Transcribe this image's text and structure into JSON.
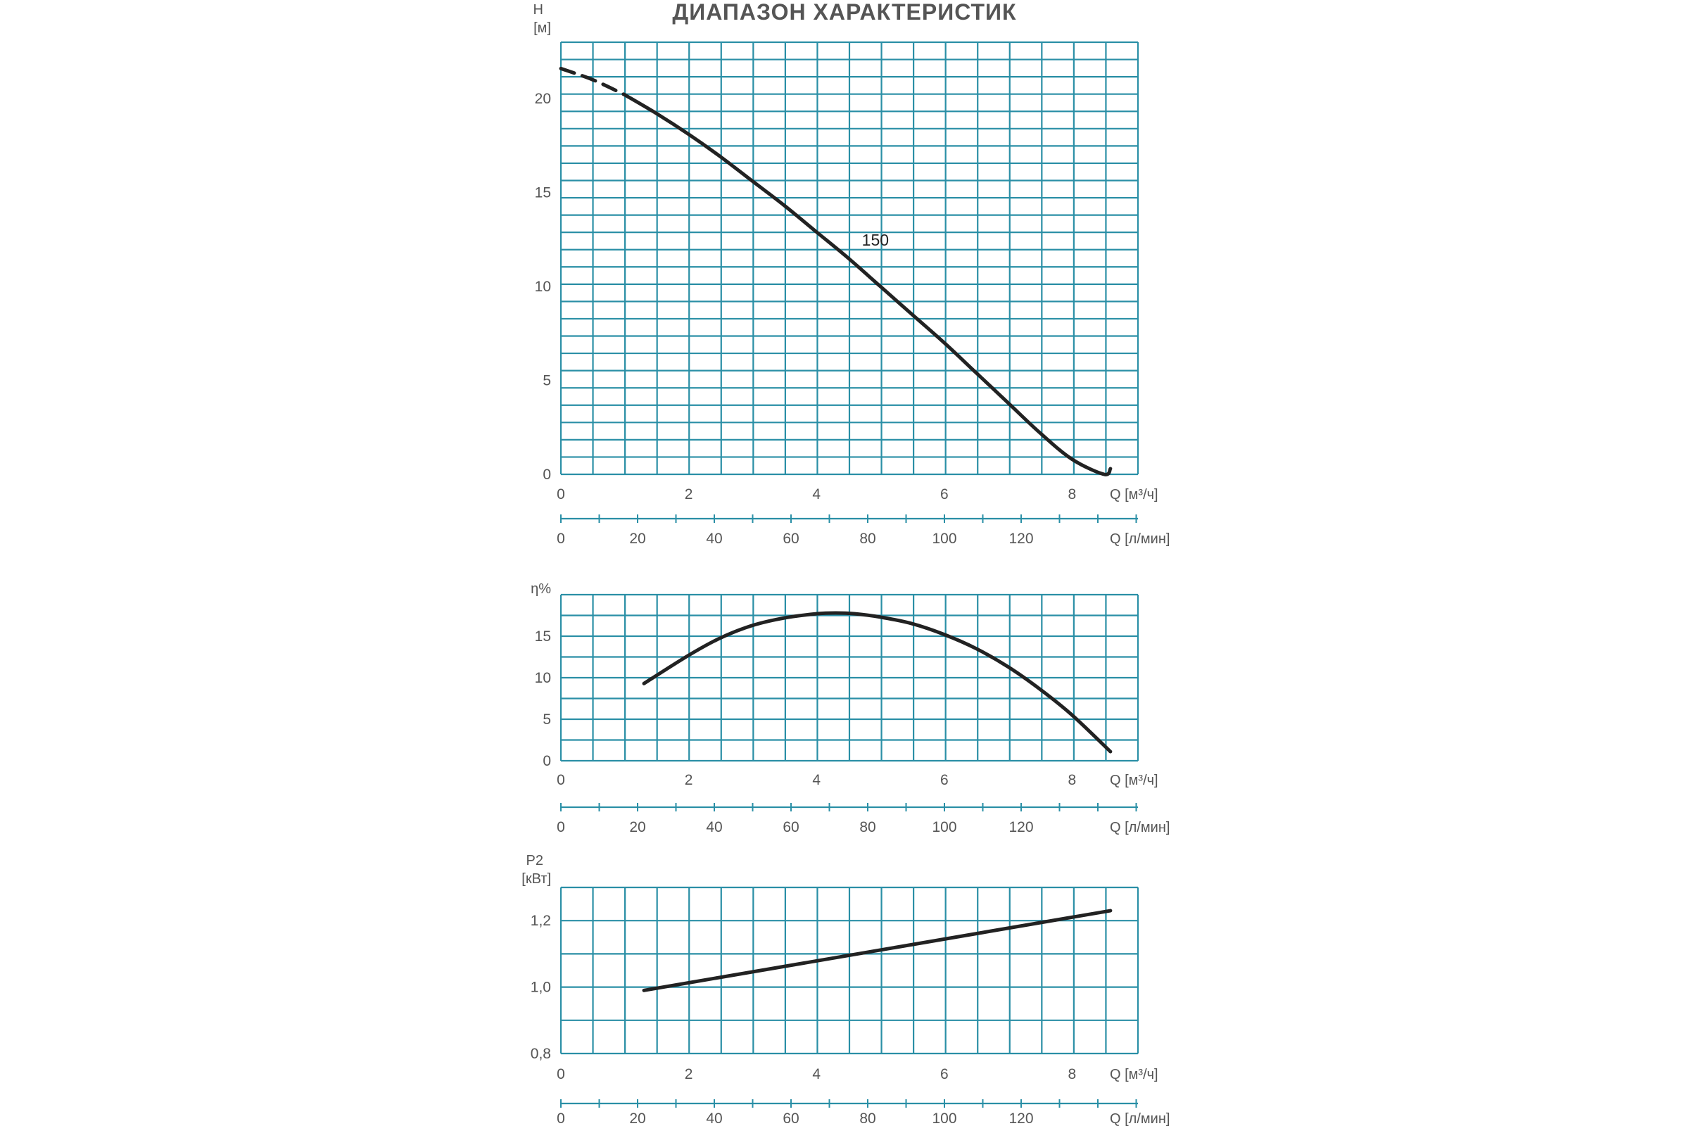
{
  "chart_data": [
    {
      "type": "line",
      "title": "ДИАПАЗОН ХАРАКТЕРИСТИК",
      "ylabel": "H [м]",
      "xlabel": "Q [м³/ч]",
      "xlabel2": "Q [л/мин]",
      "xlim": [
        0,
        9
      ],
      "ylim": [
        0,
        23
      ],
      "y_ticks": [
        "0",
        "5",
        "10",
        "15",
        "20"
      ],
      "x_ticks": [
        "0",
        "2",
        "4",
        "6",
        "8"
      ],
      "x2_ticks": [
        "0",
        "20",
        "40",
        "60",
        "80",
        "100",
        "120"
      ],
      "grid": true,
      "curve_label": "150",
      "dashed_until_x": 1.0,
      "series": [
        {
          "x": [
            0.0,
            0.5,
            1.0,
            1.5,
            2.0,
            2.5,
            3.0,
            3.5,
            4.0,
            4.5,
            5.0,
            5.5,
            6.0,
            6.5,
            7.0,
            7.5,
            8.0,
            8.5,
            8.6
          ],
          "values": [
            21.6,
            21.0,
            20.2,
            19.2,
            18.1,
            16.9,
            15.6,
            14.3,
            12.9,
            11.5,
            10.0,
            8.5,
            7.0,
            5.4,
            3.8,
            2.2,
            0.8,
            0.0,
            0.3
          ]
        }
      ]
    },
    {
      "type": "line",
      "ylabel": "η%",
      "xlabel": "Q [м³/ч]",
      "xlabel2": "Q [л/мин]",
      "xlim": [
        0,
        9
      ],
      "ylim": [
        0,
        20
      ],
      "y_ticks": [
        "0",
        "5",
        "10",
        "15"
      ],
      "x_ticks": [
        "0",
        "2",
        "4",
        "6",
        "8"
      ],
      "x2_ticks": [
        "0",
        "20",
        "40",
        "60",
        "80",
        "100",
        "120"
      ],
      "grid": true,
      "series": [
        {
          "x": [
            1.3,
            2.0,
            2.5,
            3.0,
            3.5,
            4.0,
            4.3,
            4.6,
            5.0,
            5.5,
            6.0,
            6.5,
            7.0,
            7.5,
            8.0,
            8.6
          ],
          "values": [
            9.3,
            12.7,
            14.8,
            16.3,
            17.2,
            17.7,
            17.8,
            17.7,
            17.3,
            16.5,
            15.2,
            13.5,
            11.3,
            8.6,
            5.5,
            1.1
          ]
        }
      ]
    },
    {
      "type": "line",
      "ylabel": "P2 [кВт]",
      "xlabel": "Q [м³/ч]",
      "xlabel2": "Q [л/мин]",
      "xlim": [
        0,
        9
      ],
      "ylim": [
        0.8,
        1.3
      ],
      "y_ticks": [
        "0,8",
        "1,0",
        "1,2"
      ],
      "x_ticks": [
        "0",
        "2",
        "4",
        "6",
        "8"
      ],
      "x2_ticks": [
        "0",
        "20",
        "40",
        "60",
        "80",
        "100",
        "120"
      ],
      "grid": true,
      "series": [
        {
          "x": [
            1.3,
            8.6
          ],
          "values": [
            0.99,
            1.23
          ]
        }
      ]
    }
  ],
  "colors": {
    "grid": "#2a8fa6",
    "curve": "#222222",
    "text": "#555555"
  }
}
